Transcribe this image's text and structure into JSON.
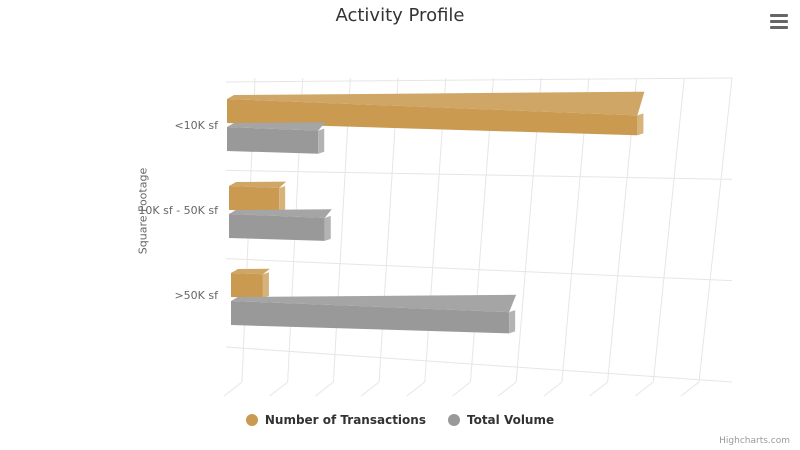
{
  "title": "Activity Profile",
  "credits": "Highcharts.com",
  "menu_icon": "hamburger-menu-icon",
  "chart_data": {
    "type": "bar",
    "orientation": "horizontal",
    "three_d": true,
    "title": "Activity Profile",
    "ylabel": "Square Footage",
    "xlabel": "",
    "categories": [
      "<10K sf",
      "10K sf - 50K sf",
      ">50K sf"
    ],
    "series": [
      {
        "name": "Number of Transactions",
        "color": "#C99A50",
        "values": [
          90,
          11,
          7
        ]
      },
      {
        "name": "Total Volume",
        "color": "#999999",
        "values": [
          20,
          21,
          61
        ]
      }
    ],
    "xlim": [
      0,
      100
    ],
    "grid": true,
    "legend_position": "bottom-center"
  }
}
